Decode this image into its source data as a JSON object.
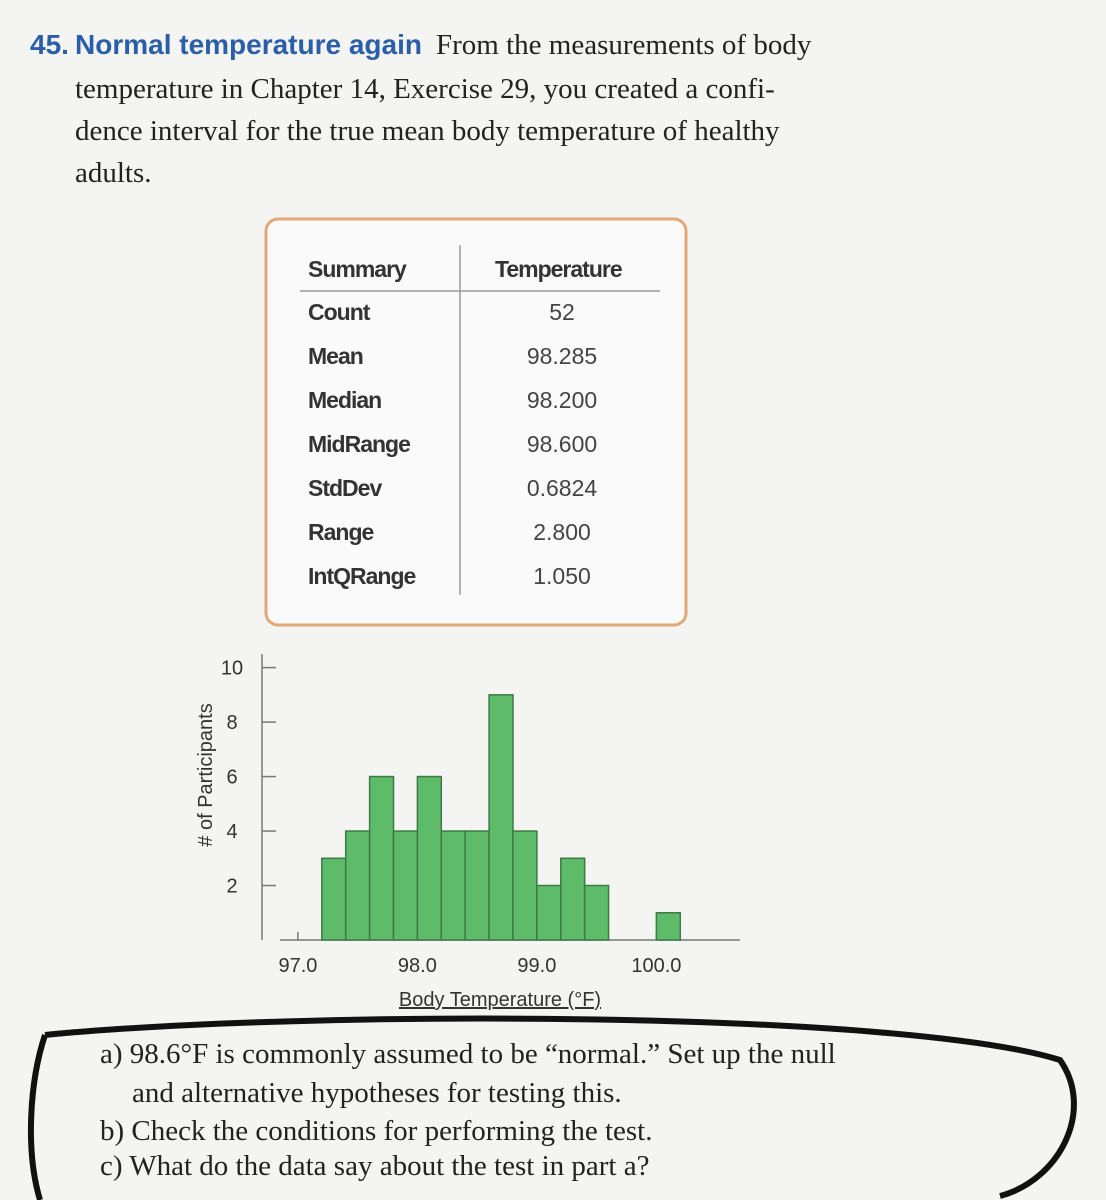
{
  "problem": {
    "number": "45.",
    "title": "Normal temperature again",
    "lines": [
      "From the measurements of body",
      "temperature in Chapter 14, Exercise 29, you created a confi-",
      "dence interval for the true mean body temperature of healthy",
      "adults."
    ]
  },
  "summary_table": {
    "header": [
      "Summary",
      "Temperature"
    ],
    "rows": [
      [
        "Count",
        "52"
      ],
      [
        "Mean",
        "98.285"
      ],
      [
        "Median",
        "98.200"
      ],
      [
        "MidRange",
        "98.600"
      ],
      [
        "StdDev",
        "0.6824"
      ],
      [
        "Range",
        "2.800"
      ],
      [
        "IntQRange",
        "1.050"
      ]
    ]
  },
  "chart_data": {
    "type": "histogram",
    "xlabel": "Body Temperature (°F)",
    "ylabel": "# of Participants",
    "bins": [
      97.2,
      97.4,
      97.6,
      97.8,
      98.0,
      98.2,
      98.4,
      98.6,
      98.8,
      99.0,
      99.2,
      99.4,
      99.6,
      99.8,
      100.0,
      100.2
    ],
    "values": [
      3,
      4,
      6,
      4,
      6,
      4,
      4,
      9,
      4,
      2,
      3,
      2,
      0,
      0,
      1
    ],
    "color": "#5dbb6a",
    "xlim": [
      96.85,
      100.7
    ],
    "xticks": [
      {
        "value": 97,
        "label": "97.0"
      },
      {
        "value": 98,
        "label": "98.0"
      },
      {
        "value": 99,
        "label": "99.0"
      },
      {
        "value": 100,
        "label": "100.0"
      }
    ],
    "ylim": [
      0,
      10.5
    ],
    "yticks": [
      2,
      4,
      6,
      8,
      10
    ]
  },
  "questions": [
    "a) 98.6°F is commonly assumed to be “normal.” Set up the null",
    "and alternative hypotheses for testing this.",
    "b) Check the conditions for performing the test.",
    "c) What do the data say about the test in part a?"
  ]
}
